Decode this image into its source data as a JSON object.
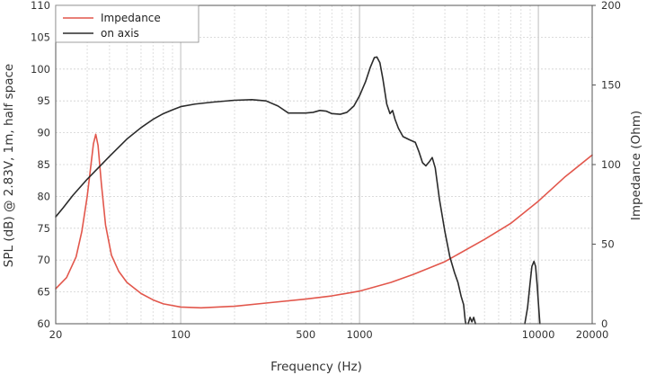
{
  "chart_data": {
    "type": "line",
    "x_scale": "log",
    "xlabel": "Frequency (Hz)",
    "ylabel_left": "SPL (dB) @ 2.83V, 1m, half space",
    "ylabel_right": "Impedance (Ohm)",
    "xlim": [
      20,
      20000
    ],
    "ylim_left": [
      60,
      110
    ],
    "ylim_right": [
      0,
      200
    ],
    "x_ticks": [
      20,
      100,
      500,
      1000,
      10000,
      20000
    ],
    "x_tick_labels": [
      "20",
      "100",
      "500",
      "1000",
      "10000",
      "20000"
    ],
    "y_ticks_left": [
      60,
      65,
      70,
      75,
      80,
      85,
      90,
      95,
      100,
      105,
      110
    ],
    "y_tick_labels_left": [
      "60",
      "65",
      "70",
      "75",
      "80",
      "85",
      "90",
      "95",
      "100",
      "105",
      "110"
    ],
    "y_ticks_right": [
      0,
      50,
      100,
      150,
      200
    ],
    "y_tick_labels_right": [
      "0",
      "50",
      "100",
      "150",
      "200"
    ],
    "grid": true,
    "legend_position": "top-left",
    "series": [
      {
        "name": "Impedance",
        "axis": "right",
        "color": "#e2574c",
        "segments": [
          [
            [
              20,
              22
            ],
            [
              23,
              29
            ],
            [
              26,
              42
            ],
            [
              28,
              58
            ],
            [
              30,
              80
            ],
            [
              31.5,
              100
            ],
            [
              32.5,
              113
            ],
            [
              33.5,
              119
            ],
            [
              34.5,
              112
            ],
            [
              36,
              88
            ],
            [
              38,
              62
            ],
            [
              41,
              43
            ],
            [
              45,
              33
            ],
            [
              50,
              26
            ],
            [
              60,
              19
            ],
            [
              70,
              15
            ],
            [
              80,
              12.5
            ],
            [
              100,
              10.5
            ],
            [
              130,
              10
            ],
            [
              200,
              11
            ],
            [
              300,
              13
            ],
            [
              500,
              15.5
            ],
            [
              700,
              17.5
            ],
            [
              1000,
              20.5
            ],
            [
              1500,
              26
            ],
            [
              2000,
              31
            ],
            [
              3000,
              39
            ],
            [
              5000,
              53
            ],
            [
              7000,
              63
            ],
            [
              10000,
              77
            ],
            [
              14000,
              92
            ],
            [
              20000,
              106
            ]
          ]
        ]
      },
      {
        "name": "on axis",
        "axis": "left",
        "color": "#2b2b2b",
        "segments": [
          [
            [
              20,
              76.8
            ],
            [
              22,
              78.2
            ],
            [
              25,
              80.2
            ],
            [
              30,
              82.7
            ],
            [
              40,
              86.3
            ],
            [
              50,
              89
            ],
            [
              60,
              90.8
            ],
            [
              70,
              92.1
            ],
            [
              80,
              93
            ],
            [
              90,
              93.6
            ],
            [
              100,
              94.1
            ],
            [
              120,
              94.5
            ],
            [
              150,
              94.8
            ],
            [
              200,
              95.1
            ],
            [
              250,
              95.2
            ],
            [
              300,
              95
            ],
            [
              350,
              94.2
            ],
            [
              400,
              93.1
            ],
            [
              450,
              93.1
            ],
            [
              500,
              93.1
            ],
            [
              550,
              93.2
            ],
            [
              600,
              93.5
            ],
            [
              650,
              93.4
            ],
            [
              700,
              93
            ],
            [
              780,
              92.9
            ],
            [
              850,
              93.2
            ],
            [
              930,
              94.2
            ],
            [
              1000,
              95.8
            ],
            [
              1080,
              98
            ],
            [
              1150,
              100.3
            ],
            [
              1210,
              101.8
            ],
            [
              1250,
              101.9
            ],
            [
              1300,
              101
            ],
            [
              1350,
              98.5
            ],
            [
              1420,
              94.5
            ],
            [
              1480,
              93
            ],
            [
              1530,
              93.5
            ],
            [
              1580,
              92.1
            ],
            [
              1650,
              90.7
            ],
            [
              1750,
              89.4
            ],
            [
              1900,
              88.9
            ],
            [
              2050,
              88.5
            ],
            [
              2150,
              87
            ],
            [
              2250,
              85.3
            ],
            [
              2350,
              84.8
            ],
            [
              2450,
              85.4
            ],
            [
              2550,
              86.1
            ],
            [
              2650,
              84.5
            ],
            [
              2800,
              79.5
            ],
            [
              3000,
              74.5
            ],
            [
              3200,
              70.5
            ],
            [
              3400,
              68
            ],
            [
              3550,
              66.5
            ],
            [
              3700,
              64.3
            ],
            [
              3820,
              63
            ],
            [
              3900,
              60.5
            ],
            [
              3930,
              60
            ]
          ],
          [
            [
              4050,
              60
            ],
            [
              4150,
              61
            ],
            [
              4250,
              60.3
            ],
            [
              4350,
              61
            ],
            [
              4450,
              60
            ]
          ],
          [
            [
              8400,
              60
            ],
            [
              8700,
              62.5
            ],
            [
              9000,
              66.5
            ],
            [
              9200,
              69
            ],
            [
              9450,
              69.8
            ],
            [
              9650,
              69
            ],
            [
              9850,
              66
            ],
            [
              10050,
              62.5
            ],
            [
              10200,
              60
            ]
          ]
        ]
      }
    ]
  }
}
